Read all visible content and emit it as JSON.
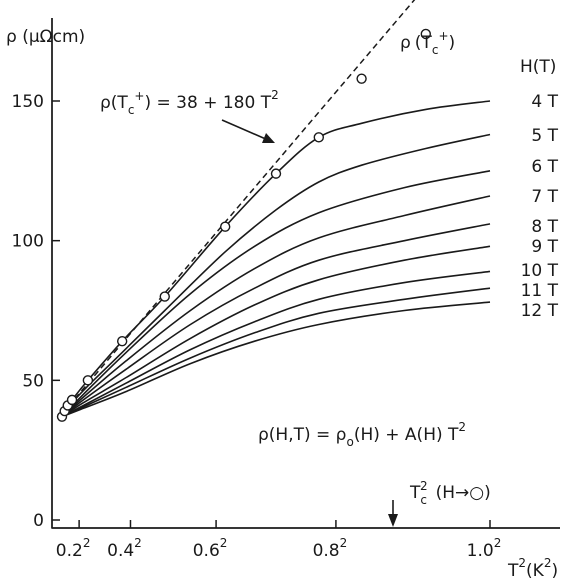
{
  "chart_data": {
    "type": "line",
    "ylabel": "ρ (μΩcm)",
    "xlabel": "T²(K²)",
    "ylim": [
      0,
      175
    ],
    "xlim": [
      0,
      1.06
    ],
    "x_ticks": [
      {
        "value": 0.04,
        "base": "0.2",
        "exp": "2"
      },
      {
        "value": 0.16,
        "base": "0.4",
        "exp": "2"
      },
      {
        "value": 0.36,
        "base": "0.6",
        "exp": "2"
      },
      {
        "value": 0.64,
        "base": "0.8",
        "exp": "2"
      },
      {
        "value": 1.0,
        "base": "1.0",
        "exp": "2"
      }
    ],
    "y_ticks": [
      {
        "value": 0,
        "label": "0"
      },
      {
        "value": 50,
        "label": "50"
      },
      {
        "value": 100,
        "label": "100"
      },
      {
        "value": 150,
        "label": "150"
      }
    ],
    "field_header": "H(T)",
    "series": [
      {
        "name": "4 T",
        "x": [
          0.0,
          0.0062,
          0.0134,
          0.0234,
          0.0605,
          0.1406,
          0.2401,
          0.3813,
          0.5,
          0.6,
          0.7,
          0.85,
          1.0
        ],
        "values": [
          37,
          39,
          41,
          43,
          50,
          64,
          80,
          105,
          124,
          137,
          142,
          147,
          150
        ]
      },
      {
        "name": "5 T",
        "x": [
          0.0,
          0.0062,
          0.0134,
          0.0234,
          0.0605,
          0.1406,
          0.2401,
          0.3813,
          0.5,
          0.6,
          0.7,
          0.85,
          1.0
        ],
        "values": [
          37,
          38.5,
          40,
          42,
          48,
          60,
          75,
          96,
          111,
          121,
          127,
          133,
          138
        ]
      },
      {
        "name": "6 T",
        "x": [
          0.0,
          0.05,
          0.15,
          0.3,
          0.45,
          0.6,
          0.8,
          1.0
        ],
        "values": [
          37,
          45,
          60,
          81,
          98,
          110,
          119,
          125
        ]
      },
      {
        "name": "7 T",
        "x": [
          0.0,
          0.05,
          0.15,
          0.3,
          0.45,
          0.6,
          0.8,
          1.0
        ],
        "values": [
          37,
          44,
          57,
          75,
          90,
          101,
          109,
          116
        ]
      },
      {
        "name": "8 T",
        "x": [
          0.0,
          0.05,
          0.15,
          0.3,
          0.45,
          0.6,
          0.8,
          1.0
        ],
        "values": [
          37,
          43,
          54,
          70,
          83,
          93,
          100,
          106
        ]
      },
      {
        "name": "9 T",
        "x": [
          0.0,
          0.05,
          0.15,
          0.3,
          0.45,
          0.6,
          0.8,
          1.0
        ],
        "values": [
          37,
          42,
          51,
          65,
          77,
          86,
          93,
          98
        ]
      },
      {
        "name": "10 T",
        "x": [
          0.0,
          0.05,
          0.15,
          0.3,
          0.45,
          0.6,
          0.8,
          1.0
        ],
        "values": [
          37,
          41,
          49,
          61,
          71,
          79,
          85,
          89
        ]
      },
      {
        "name": "11 T",
        "x": [
          0.0,
          0.05,
          0.15,
          0.3,
          0.45,
          0.6,
          0.8,
          1.0
        ],
        "values": [
          37,
          40.5,
          47.5,
          58,
          67,
          74,
          79,
          83
        ]
      },
      {
        "name": "12 T",
        "x": [
          0.0,
          0.05,
          0.15,
          0.3,
          0.45,
          0.6,
          0.8,
          1.0
        ],
        "values": [
          37,
          40,
          46,
          56,
          64,
          70,
          75,
          78
        ]
      }
    ],
    "tc_points": {
      "name": "ρ(Tc+)",
      "x": [
        0.0,
        0.0062,
        0.0134,
        0.0234,
        0.0605,
        0.1406,
        0.2401,
        0.3813,
        0.5,
        0.6,
        0.7,
        0.85
      ],
      "values": [
        37,
        39,
        41,
        43,
        50,
        64,
        80,
        105,
        124,
        137,
        158,
        174
      ]
    },
    "fit_line": {
      "intercept": 38,
      "slope": 180,
      "x_range": [
        0.0,
        0.85
      ]
    },
    "tc_label": {
      "rho": "ρ",
      "open": "(T",
      "sub": "c",
      "sup": "+",
      "close": ")"
    },
    "fit_label": {
      "lhs": "ρ(T",
      "sub": "c",
      "sup": "+",
      "rhs": ") = 38 + 180 T",
      "exp": "2"
    },
    "model_label": {
      "lhs": "ρ(H,T) = ρ",
      "sub": "o",
      "mid": "(H) + A(H) T",
      "exp": "2"
    },
    "tc_arrow_x": 0.75,
    "tc_arrow_label": {
      "base": "T",
      "sub": "c",
      "sup": "2",
      "rest": "(H→○)"
    },
    "xlabel_parts": {
      "base": "T",
      "exp": "2",
      "rest": "(K",
      "exp2": "2",
      "close": ")"
    }
  }
}
